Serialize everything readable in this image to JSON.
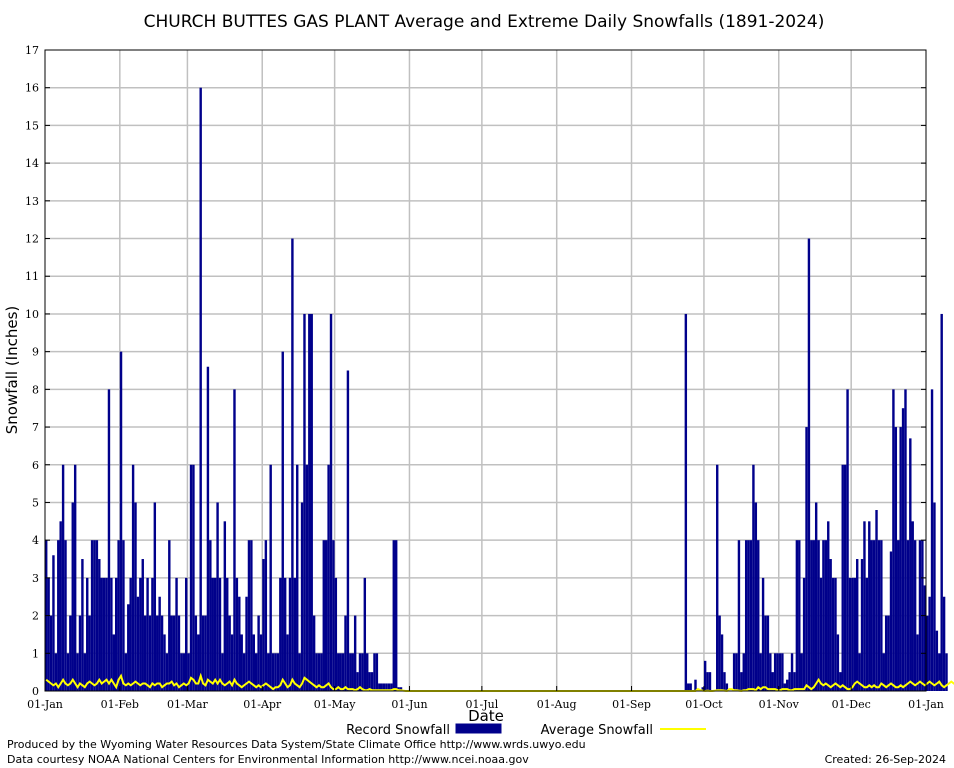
{
  "chart_data": {
    "type": "bar",
    "title": "CHURCH BUTTES GAS PLANT Average and Extreme Daily Snowfalls (1891-2024)",
    "xlabel": "Date",
    "ylabel": "Snowfall (Inches)",
    "ylim": [
      0,
      17
    ],
    "yticks": [
      "0",
      "1",
      "2",
      "3",
      "4",
      "5",
      "6",
      "7",
      "8",
      "9",
      "10",
      "11",
      "12",
      "13",
      "14",
      "15",
      "16",
      "17"
    ],
    "xticks": [
      "01-Jan",
      "01-Feb",
      "01-Mar",
      "01-Apr",
      "01-May",
      "01-Jun",
      "01-Jul",
      "01-Aug",
      "01-Sep",
      "01-Oct",
      "01-Nov",
      "01-Dec",
      "01-Jan"
    ],
    "xtick_days": [
      0,
      31,
      59,
      90,
      120,
      151,
      181,
      212,
      243,
      273,
      304,
      334,
      365
    ],
    "grid": true,
    "legend_position": "bottom",
    "series": [
      {
        "name": "Record Snowfall",
        "type": "bar",
        "color": "#00008b",
        "values": [
          4,
          3,
          2,
          3.6,
          1,
          4,
          4.5,
          6,
          4,
          1,
          2,
          5,
          6,
          1,
          2,
          3.5,
          1,
          3,
          2,
          4,
          4,
          4,
          3.5,
          3,
          3,
          3,
          8,
          3,
          1.5,
          3,
          4,
          9,
          4,
          1,
          2.3,
          3,
          6,
          5,
          2.5,
          3,
          3.5,
          2,
          3,
          2,
          3,
          5,
          2,
          2.5,
          2,
          1.5,
          1,
          4,
          2,
          2,
          3,
          2,
          1,
          1,
          3,
          1,
          6,
          6,
          2,
          1.5,
          16,
          2,
          2,
          8.6,
          4,
          3,
          3,
          5,
          3,
          1,
          4.5,
          3,
          2,
          1.5,
          8,
          3,
          2.5,
          1.5,
          1,
          2.5,
          4,
          4,
          1.5,
          1,
          2,
          1.5,
          3.5,
          4,
          1,
          6,
          1,
          1,
          1,
          3,
          9,
          3,
          1.5,
          3,
          12,
          3,
          6,
          1,
          5,
          10,
          6,
          10,
          10,
          2,
          1,
          1,
          1,
          4,
          4,
          6,
          10,
          4,
          3,
          1,
          1,
          1,
          2,
          8.5,
          1,
          1,
          2,
          0.5,
          1,
          1,
          3,
          1,
          0.5,
          0.5,
          1,
          1,
          0.2,
          0.2,
          0.2,
          0.2,
          0.2,
          0.2,
          4,
          4,
          0.1,
          0.1,
          0,
          0,
          0,
          0,
          0,
          0,
          0,
          0,
          0,
          0,
          0,
          0,
          0,
          0,
          0,
          0,
          0,
          0,
          0,
          0,
          0,
          0,
          0,
          0,
          0,
          0,
          0,
          0,
          0,
          0,
          0,
          0,
          0,
          0,
          0,
          0,
          0,
          0,
          0,
          0,
          0,
          0,
          0,
          0,
          0,
          0,
          0,
          0,
          0,
          0,
          0,
          0,
          0,
          0,
          0,
          0,
          0,
          0,
          0,
          0,
          0,
          0,
          0,
          0,
          0,
          0,
          0,
          0,
          0,
          0,
          0,
          0,
          0,
          0,
          0,
          0,
          0,
          0,
          0,
          0,
          0,
          0,
          0,
          0,
          0,
          0,
          0,
          0,
          0,
          0,
          0,
          0,
          0,
          0,
          0,
          0,
          0,
          0,
          0,
          0,
          0,
          0,
          0,
          0,
          0,
          0,
          0,
          0,
          0,
          0,
          0,
          0,
          0,
          0,
          0,
          0,
          0,
          10,
          0.2,
          0.2,
          0,
          0.3,
          0,
          0,
          0.1,
          0.8,
          0.5,
          0.5,
          0,
          0,
          6,
          2,
          1.5,
          0.5,
          0.2,
          0,
          0,
          1,
          1,
          4,
          0.5,
          1,
          4,
          4,
          4,
          6,
          5,
          4,
          1,
          3,
          2,
          2,
          1,
          0.5,
          1,
          1,
          1,
          1,
          0.2,
          0.3,
          0.5,
          1,
          0.5,
          4,
          4,
          1,
          3,
          7,
          12,
          4,
          4,
          5,
          4,
          3,
          4,
          4,
          4.5,
          3.5,
          3,
          3,
          1.5,
          0.5,
          6,
          6,
          8,
          3,
          3,
          3,
          3.5,
          1,
          3.5,
          4.5,
          3,
          4.5,
          4,
          4,
          4.8,
          4,
          4,
          1,
          2,
          2,
          3.7,
          8,
          7,
          4,
          7,
          7.5,
          8,
          4,
          6.7,
          4.5,
          4,
          1.5,
          4,
          4,
          2.8,
          2,
          2.5,
          8,
          5,
          1.6,
          1,
          10,
          2.5,
          1
        ]
      },
      {
        "name": "Average Snowfall",
        "type": "line",
        "color": "#ffff00",
        "values": [
          0.3,
          0.25,
          0.2,
          0.15,
          0.2,
          0.1,
          0.2,
          0.3,
          0.2,
          0.15,
          0.2,
          0.3,
          0.2,
          0.1,
          0.2,
          0.15,
          0.1,
          0.2,
          0.25,
          0.2,
          0.15,
          0.2,
          0.3,
          0.2,
          0.25,
          0.3,
          0.2,
          0.3,
          0.2,
          0.1,
          0.3,
          0.4,
          0.2,
          0.15,
          0.2,
          0.15,
          0.2,
          0.25,
          0.2,
          0.15,
          0.2,
          0.2,
          0.15,
          0.1,
          0.2,
          0.15,
          0.2,
          0.2,
          0.1,
          0.15,
          0.2,
          0.2,
          0.25,
          0.15,
          0.2,
          0.1,
          0.15,
          0.2,
          0.15,
          0.2,
          0.35,
          0.3,
          0.2,
          0.2,
          0.4,
          0.2,
          0.15,
          0.3,
          0.25,
          0.2,
          0.3,
          0.2,
          0.3,
          0.2,
          0.15,
          0.2,
          0.25,
          0.15,
          0.3,
          0.2,
          0.15,
          0.1,
          0.15,
          0.2,
          0.25,
          0.2,
          0.15,
          0.1,
          0.15,
          0.1,
          0.15,
          0.2,
          0.15,
          0.1,
          0.05,
          0.1,
          0.1,
          0.15,
          0.3,
          0.2,
          0.1,
          0.15,
          0.3,
          0.2,
          0.15,
          0.1,
          0.2,
          0.35,
          0.3,
          0.25,
          0.2,
          0.15,
          0.1,
          0.15,
          0.1,
          0.1,
          0.15,
          0.2,
          0.1,
          0.05,
          0.05,
          0.1,
          0.05,
          0.05,
          0.1,
          0.05,
          0.05,
          0.05,
          0.02,
          0.05,
          0.1,
          0.05,
          0.02,
          0.02,
          0.05,
          0.02,
          0.02,
          0.02,
          0.02,
          0.02,
          0.02,
          0.02,
          0.02,
          0.02,
          0.05,
          0.05,
          0.02,
          0.02,
          0.01,
          0,
          0,
          0,
          0,
          0,
          0,
          0,
          0,
          0,
          0,
          0,
          0,
          0,
          0,
          0,
          0,
          0,
          0,
          0,
          0,
          0,
          0,
          0,
          0,
          0,
          0,
          0,
          0,
          0,
          0,
          0,
          0,
          0,
          0,
          0,
          0,
          0,
          0,
          0,
          0,
          0,
          0,
          0,
          0,
          0,
          0,
          0,
          0,
          0,
          0,
          0,
          0,
          0,
          0,
          0,
          0,
          0,
          0,
          0,
          0,
          0,
          0,
          0,
          0,
          0,
          0,
          0,
          0,
          0,
          0,
          0,
          0,
          0,
          0,
          0,
          0,
          0,
          0,
          0,
          0,
          0,
          0,
          0,
          0,
          0,
          0,
          0,
          0,
          0,
          0,
          0,
          0,
          0,
          0,
          0,
          0,
          0,
          0,
          0,
          0,
          0,
          0,
          0,
          0,
          0,
          0,
          0,
          0,
          0,
          0,
          0,
          0,
          0,
          0,
          0,
          0,
          0,
          0,
          0,
          0,
          0,
          0.05,
          0.02,
          0.01,
          0,
          0.01,
          0,
          0,
          0.01,
          0.02,
          0.02,
          0.02,
          0.01,
          0,
          0.05,
          0.05,
          0.02,
          0.02,
          0.01,
          0,
          0.02,
          0.02,
          0.05,
          0.05,
          0.05,
          0.02,
          0.1,
          0.05,
          0.1,
          0.1,
          0.05,
          0.05,
          0.05,
          0.05,
          0.02,
          0.02,
          0.05,
          0.05,
          0.05,
          0.02,
          0.02,
          0.05,
          0.05,
          0.05,
          0.05,
          0.05,
          0.15,
          0.1,
          0.05,
          0.1,
          0.2,
          0.3,
          0.2,
          0.15,
          0.2,
          0.15,
          0.1,
          0.15,
          0.2,
          0.15,
          0.1,
          0.15,
          0.1,
          0.05,
          0.05,
          0.1,
          0.2,
          0.25,
          0.2,
          0.15,
          0.1,
          0.1,
          0.15,
          0.1,
          0.15,
          0.1,
          0.1,
          0.2,
          0.15,
          0.1,
          0.15,
          0.2,
          0.15,
          0.1,
          0.1,
          0.15,
          0.1,
          0.15,
          0.2,
          0.25,
          0.2,
          0.15,
          0.2,
          0.25,
          0.2,
          0.15,
          0.2,
          0.25,
          0.2,
          0.15,
          0.2,
          0.25,
          0.15,
          0.1,
          0.15,
          0.2,
          0.25,
          0.2,
          0.15,
          0.1,
          0.3,
          0.2,
          0.15
        ]
      }
    ]
  },
  "footer": {
    "credit_line1": "Produced by the Wyoming Water Resources Data System/State Climate Office http://www.wrds.uwyo.edu",
    "credit_line2": "Data courtesy NOAA National Centers for Environmental Information http://www.ncei.noaa.gov",
    "created": "Created:  26-Sep-2024"
  }
}
